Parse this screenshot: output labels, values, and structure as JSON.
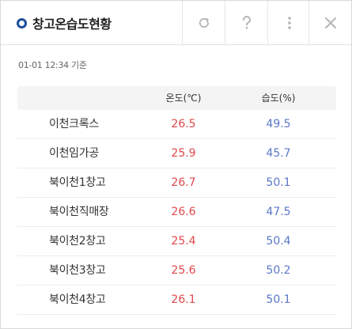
{
  "header": {
    "title": "창고온습도현황",
    "buttons": {
      "refresh_icon": "refresh-icon",
      "help_icon": "question-icon",
      "more_icon": "more-vertical-icon",
      "close_icon": "close-icon"
    }
  },
  "timestamp": "01-01 12:34 기준",
  "table": {
    "columns": [
      "",
      "온도(℃)",
      "습도(%)"
    ],
    "rows": [
      {
        "name": "이천크록스",
        "temp": "26.5",
        "hum": "49.5"
      },
      {
        "name": "이천임가공",
        "temp": "25.9",
        "hum": "45.7"
      },
      {
        "name": "북이천1창고",
        "temp": "26.7",
        "hum": "50.1"
      },
      {
        "name": "북이천직매장",
        "temp": "26.6",
        "hum": "47.5"
      },
      {
        "name": "북이천2창고",
        "temp": "25.4",
        "hum": "50.4"
      },
      {
        "name": "북이천3창고",
        "temp": "25.6",
        "hum": "50.2"
      },
      {
        "name": "북이천4창고",
        "temp": "26.1",
        "hum": "50.1"
      }
    ]
  },
  "colors": {
    "accent": "#1e4e9c",
    "temperature": "#e0474a",
    "humidity": "#5b78c8"
  }
}
